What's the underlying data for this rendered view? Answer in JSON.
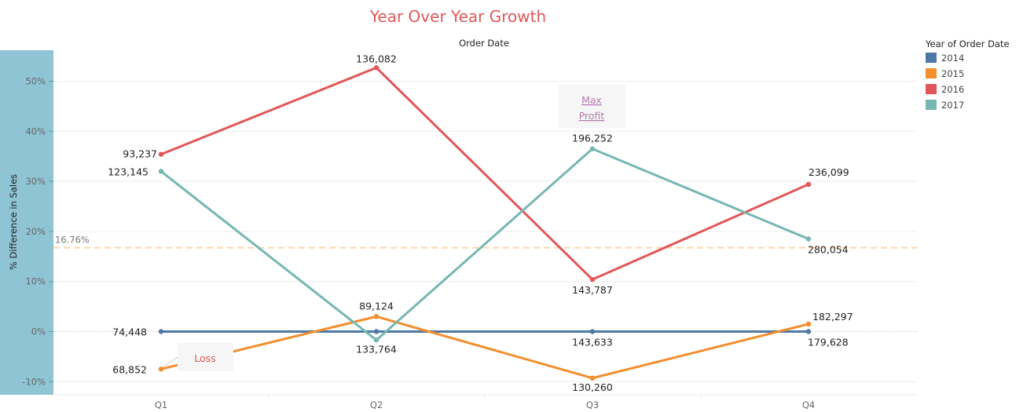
{
  "colors": {
    "2014": "#4e79a7",
    "2015": "#f28e2b",
    "2016": "#e15759",
    "2017": "#76b7b2",
    "axis_band": "#8fc4d4",
    "title": "#e15759",
    "reference_line": "#fdd7a9"
  },
  "chart_data": {
    "type": "line",
    "title": "Year Over Year Growth",
    "xlabel": "Order Date",
    "ylabel": "% Difference in Sales",
    "categories": [
      "Q1",
      "Q2",
      "Q3",
      "Q4"
    ],
    "y_ticks": [
      "50%",
      "40%",
      "30%",
      "20%",
      "10%",
      "0%",
      "-10%"
    ],
    "ylim": [
      -10.5,
      55.5
    ],
    "grid": true,
    "legend": {
      "title": "Year of Order Date",
      "placement": "right",
      "entries": [
        "2014",
        "2015",
        "2016",
        "2017"
      ]
    },
    "series": [
      {
        "name": "2014",
        "values": [
          0,
          0,
          0,
          0
        ],
        "labels": [
          "74,448",
          "",
          "143,633",
          "179,628"
        ]
      },
      {
        "name": "2015",
        "values": [
          -7.5,
          3.0,
          -9.3,
          1.5
        ],
        "labels": [
          "68,852",
          "89,124",
          "130,260",
          "182,297"
        ]
      },
      {
        "name": "2016",
        "values": [
          35.4,
          52.7,
          10.4,
          29.4
        ],
        "labels": [
          "93,237",
          "136,082",
          "143,787",
          "236,099"
        ]
      },
      {
        "name": "2017",
        "values": [
          32.0,
          -1.7,
          36.5,
          18.5
        ],
        "labels": [
          "123,145",
          "133,764",
          "196,252",
          "280,054"
        ]
      }
    ],
    "reference_line": {
      "value": 16.76,
      "label": "16.76%"
    },
    "annotations": [
      {
        "text_lines": [
          "Max",
          "Profit"
        ],
        "anchor": "Q3"
      },
      {
        "text": "Loss",
        "anchor": "Q1"
      }
    ]
  }
}
